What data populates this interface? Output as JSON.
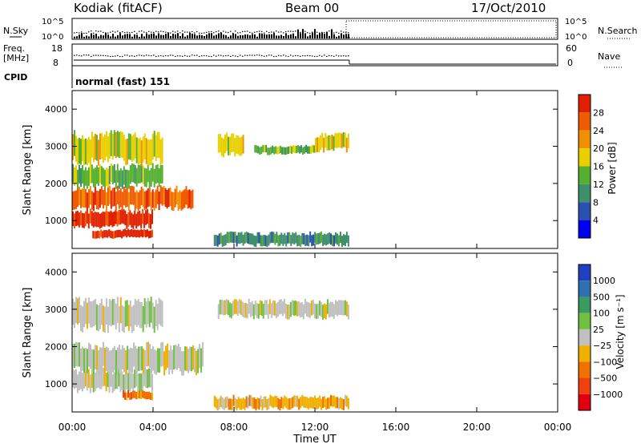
{
  "header": {
    "radar": "Kodiak (fitACF)",
    "beam": "Beam 00",
    "date": "17/Oct/2010"
  },
  "noise_panel": {
    "left_label": "N.Sky",
    "left_ticks": [
      "10^5",
      "10^0"
    ],
    "right_label": "N.Search",
    "right_ticks": [
      "10^5",
      "10^0"
    ]
  },
  "freq_panel": {
    "left_label_1": "Freq.",
    "left_label_2": "[MHz]",
    "left_ticks": [
      "18",
      "8"
    ],
    "right_label": "Nave",
    "right_ticks": [
      "60",
      "0"
    ]
  },
  "cpid": {
    "label": "CPID",
    "value": "normal (fast) 151"
  },
  "power_panel": {
    "ylabel": "Slant Range [km]",
    "yticks": [
      "1000",
      "2000",
      "3000",
      "4000"
    ],
    "colorbar_label": "Power [dB]",
    "colorbar_ticks": [
      "4",
      "8",
      "12",
      "16",
      "20",
      "24",
      "28"
    ],
    "colors": [
      "#0000f0",
      "#2a50b0",
      "#3f8f6a",
      "#56b030",
      "#e8d000",
      "#f09000",
      "#f05a00",
      "#e02000"
    ]
  },
  "velocity_panel": {
    "ylabel": "Slant Range [km]",
    "yticks": [
      "1000",
      "2000",
      "3000",
      "4000"
    ],
    "colorbar_label": "Velocity [m s⁻¹]",
    "colorbar_ticks": [
      "1000",
      "500",
      "100",
      "25",
      "−25",
      "−100",
      "−500",
      "−1000"
    ],
    "colors": [
      "#2040c0",
      "#3070b0",
      "#3a9a60",
      "#70c040",
      "#c0c0c0",
      "#f0b000",
      "#f07000",
      "#f04010",
      "#e00010"
    ]
  },
  "time_axis": {
    "xlabel": "Time UT",
    "ticks": [
      "00:00",
      "04:00",
      "08:00",
      "12:00",
      "16:00",
      "20:00",
      "00:00"
    ]
  },
  "chart_data": [
    {
      "type": "heatmap",
      "name": "Power",
      "x_unit": "hours UT",
      "xlim": [
        0,
        24
      ],
      "ylim": [
        250,
        4500
      ],
      "data_end_hour": 13.7,
      "regions": [
        {
          "t0": 0.0,
          "t1": 4.0,
          "r0": 850,
          "r1": 1250,
          "level": 7
        },
        {
          "t0": 1.0,
          "t1": 4.0,
          "r0": 550,
          "r1": 750,
          "level": 7
        },
        {
          "t0": 0.0,
          "t1": 6.0,
          "r0": 1350,
          "r1": 1850,
          "level": 6
        },
        {
          "t0": 0.0,
          "t1": 4.5,
          "r0": 1950,
          "r1": 2450,
          "level": 3
        },
        {
          "t0": 0.0,
          "t1": 4.5,
          "r0": 2600,
          "r1": 3300,
          "level": 4
        },
        {
          "t0": 7.2,
          "t1": 8.5,
          "r0": 2800,
          "r1": 3300,
          "level": 4
        },
        {
          "t0": 9.0,
          "t1": 12.0,
          "r0": 2800,
          "r1": 3000,
          "level": 3
        },
        {
          "t0": 12.0,
          "t1": 13.7,
          "r0": 2900,
          "r1": 3300,
          "level": 4
        },
        {
          "t0": 7.0,
          "t1": 13.7,
          "r0": 350,
          "r1": 650,
          "level": 2
        }
      ]
    },
    {
      "type": "heatmap",
      "name": "Velocity",
      "x_unit": "hours UT",
      "xlim": [
        0,
        24
      ],
      "ylim": [
        250,
        4500
      ],
      "data_end_hour": 13.7,
      "regions": [
        {
          "t0": 0.0,
          "t1": 4.0,
          "r0": 850,
          "r1": 1350,
          "level": 4
        },
        {
          "t0": 2.5,
          "t1": 4.0,
          "r0": 600,
          "r1": 800,
          "level": 6
        },
        {
          "t0": 0.0,
          "t1": 6.5,
          "r0": 1350,
          "r1": 2000,
          "level": 4
        },
        {
          "t0": 0.0,
          "t1": 4.5,
          "r0": 2500,
          "r1": 3200,
          "level": 4
        },
        {
          "t0": 7.2,
          "t1": 13.7,
          "r0": 2800,
          "r1": 3200,
          "level": 4
        },
        {
          "t0": 7.0,
          "t1": 13.7,
          "r0": 350,
          "r1": 650,
          "level": 5
        }
      ]
    }
  ]
}
